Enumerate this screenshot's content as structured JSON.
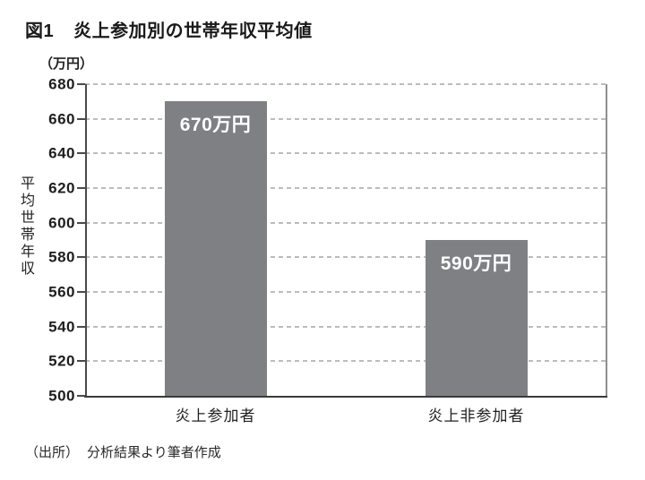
{
  "figure": {
    "title_prefix": "図1",
    "title": "炎上参加別の世帯年収平均値",
    "unit_label": "（万円）",
    "y_axis_label": "平均世帯年収",
    "source_label": "（出所）",
    "source_text": "分析結果より筆者作成"
  },
  "chart_data": {
    "type": "bar",
    "title": "図1　炎上参加別の世帯年収平均値",
    "categories": [
      "炎上参加者",
      "炎上非参加者"
    ],
    "values": [
      670,
      590
    ],
    "bar_labels": [
      "670万円",
      "590万円"
    ],
    "xlabel": "",
    "ylabel": "平均世帯年収",
    "y_unit": "万円",
    "ylim": [
      500,
      680
    ],
    "yticks": [
      680,
      660,
      640,
      620,
      600,
      580,
      560,
      540,
      520,
      500
    ],
    "grid": "horizontal-dashed",
    "legend": "none",
    "bar_color": "#7f8084",
    "bar_label_color": "#ffffff",
    "source": "（出所）分析結果より筆者作成"
  },
  "colors": {
    "background": "#ffffff",
    "text": "#1c1c1c",
    "axis": "#4a4a4a",
    "gridline": "#bcbcbc",
    "plot_right_border": "#8f8f8f"
  }
}
